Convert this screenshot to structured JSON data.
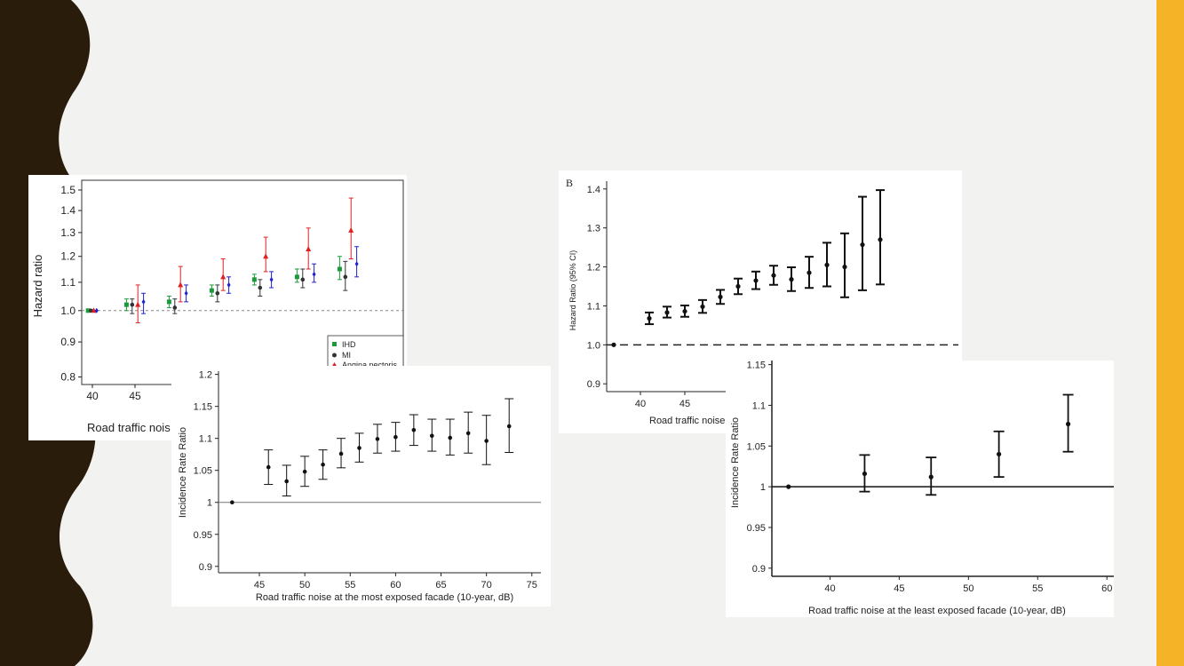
{
  "colors": {
    "background": "#f2f2f0",
    "left_border": "#2a1c0b",
    "right_border": "#f5b427",
    "ihd": "#1a9a3a",
    "mi": "#333333",
    "angina": "#e02020",
    "series4": "#2020d0"
  },
  "chart_data": [
    {
      "id": "A",
      "type": "scatter",
      "ylabel": "Hazard ratio",
      "xlabel": "Road traffic nois",
      "ylim": [
        0.78,
        1.55
      ],
      "ylog": true,
      "yticks": [
        "1.5",
        "1.4",
        "1.3",
        "1.2",
        "1.1",
        "1.0",
        "0.9",
        "0.8"
      ],
      "xticks": [
        "40",
        "45"
      ],
      "reference_line": 1.0,
      "legend": [
        "IHD",
        "MI",
        "Angina pectoris"
      ],
      "legend_position": "bottom-right",
      "series": [
        {
          "name": "IHD",
          "color": "#1a9a3a",
          "marker": "square",
          "points": [
            {
              "x": 40,
              "y": 1.0,
              "lo": 1.0,
              "hi": 1.0
            },
            {
              "x": 45,
              "y": 1.02,
              "lo": 1.0,
              "hi": 1.04
            },
            {
              "x": 50,
              "y": 1.03,
              "lo": 1.01,
              "hi": 1.05
            },
            {
              "x": 55,
              "y": 1.07,
              "lo": 1.05,
              "hi": 1.09
            },
            {
              "x": 60,
              "y": 1.11,
              "lo": 1.09,
              "hi": 1.13
            },
            {
              "x": 65,
              "y": 1.12,
              "lo": 1.1,
              "hi": 1.15
            },
            {
              "x": 70,
              "y": 1.15,
              "lo": 1.11,
              "hi": 1.2
            }
          ]
        },
        {
          "name": "MI",
          "color": "#333333",
          "marker": "circle",
          "points": [
            {
              "x": 40,
              "y": 1.0,
              "lo": 1.0,
              "hi": 1.0
            },
            {
              "x": 45,
              "y": 1.02,
              "lo": 0.99,
              "hi": 1.04
            },
            {
              "x": 50,
              "y": 1.01,
              "lo": 0.99,
              "hi": 1.04
            },
            {
              "x": 55,
              "y": 1.06,
              "lo": 1.03,
              "hi": 1.09
            },
            {
              "x": 60,
              "y": 1.08,
              "lo": 1.05,
              "hi": 1.11
            },
            {
              "x": 65,
              "y": 1.11,
              "lo": 1.08,
              "hi": 1.15
            },
            {
              "x": 70,
              "y": 1.12,
              "lo": 1.07,
              "hi": 1.18
            }
          ]
        },
        {
          "name": "Angina pectoris",
          "color": "#e02020",
          "marker": "triangle",
          "points": [
            {
              "x": 40,
              "y": 1.0,
              "lo": 1.0,
              "hi": 1.0
            },
            {
              "x": 45,
              "y": 1.02,
              "lo": 0.96,
              "hi": 1.09
            },
            {
              "x": 50,
              "y": 1.09,
              "lo": 1.03,
              "hi": 1.16
            },
            {
              "x": 55,
              "y": 1.12,
              "lo": 1.07,
              "hi": 1.19
            },
            {
              "x": 60,
              "y": 1.2,
              "lo": 1.14,
              "hi": 1.28
            },
            {
              "x": 65,
              "y": 1.23,
              "lo": 1.15,
              "hi": 1.32
            },
            {
              "x": 70,
              "y": 1.31,
              "lo": 1.19,
              "hi": 1.46
            }
          ]
        },
        {
          "name": "",
          "color": "#2020d0",
          "marker": "diamond",
          "points": [
            {
              "x": 40,
              "y": 1.0,
              "lo": 1.0,
              "hi": 1.0
            },
            {
              "x": 45,
              "y": 1.03,
              "lo": 0.99,
              "hi": 1.06
            },
            {
              "x": 50,
              "y": 1.06,
              "lo": 1.03,
              "hi": 1.09
            },
            {
              "x": 55,
              "y": 1.09,
              "lo": 1.06,
              "hi": 1.12
            },
            {
              "x": 60,
              "y": 1.11,
              "lo": 1.08,
              "hi": 1.14
            },
            {
              "x": 65,
              "y": 1.13,
              "lo": 1.1,
              "hi": 1.17
            },
            {
              "x": 70,
              "y": 1.17,
              "lo": 1.12,
              "hi": 1.24
            }
          ]
        }
      ]
    },
    {
      "id": "B",
      "type": "scatter",
      "panel_label": "B",
      "ylabel": "Hazard Ratio (95% CI)",
      "xlabel": "Road traffic noise a",
      "ylim": [
        0.88,
        1.42
      ],
      "yticks": [
        "1.4",
        "1.3",
        "1.2",
        "1.1",
        "1.0",
        "0.9"
      ],
      "xticks": [
        "40",
        "45"
      ],
      "reference_line": 1.0,
      "points": [
        {
          "x": 37,
          "y": 1.0,
          "lo": 1.0,
          "hi": 1.0
        },
        {
          "x": 41,
          "y": 1.068,
          "lo": 1.053,
          "hi": 1.083
        },
        {
          "x": 43,
          "y": 1.083,
          "lo": 1.07,
          "hi": 1.098
        },
        {
          "x": 45,
          "y": 1.086,
          "lo": 1.072,
          "hi": 1.101
        },
        {
          "x": 47,
          "y": 1.098,
          "lo": 1.082,
          "hi": 1.115
        },
        {
          "x": 49,
          "y": 1.123,
          "lo": 1.105,
          "hi": 1.141
        },
        {
          "x": 51,
          "y": 1.15,
          "lo": 1.13,
          "hi": 1.17
        },
        {
          "x": 53,
          "y": 1.165,
          "lo": 1.143,
          "hi": 1.188
        },
        {
          "x": 55,
          "y": 1.178,
          "lo": 1.154,
          "hi": 1.203
        },
        {
          "x": 57,
          "y": 1.168,
          "lo": 1.138,
          "hi": 1.199
        },
        {
          "x": 59,
          "y": 1.185,
          "lo": 1.146,
          "hi": 1.226
        },
        {
          "x": 61,
          "y": 1.205,
          "lo": 1.15,
          "hi": 1.262
        },
        {
          "x": 63,
          "y": 1.2,
          "lo": 1.122,
          "hi": 1.286
        },
        {
          "x": 65,
          "y": 1.257,
          "lo": 1.14,
          "hi": 1.38
        },
        {
          "x": 67,
          "y": 1.27,
          "lo": 1.155,
          "hi": 1.397
        }
      ]
    },
    {
      "id": "C",
      "type": "scatter",
      "ylabel": "Incidence Rate Ratio",
      "xlabel": "Road traffic noise at the most exposed facade (10-year, dB)",
      "ylim": [
        0.89,
        1.205
      ],
      "xlim": [
        40.5,
        76
      ],
      "yticks": [
        "1.2",
        "1.15",
        "1.1",
        "1.05",
        "1",
        "0.95",
        "0.9"
      ],
      "xticks": [
        "45",
        "50",
        "55",
        "60",
        "65",
        "70",
        "75"
      ],
      "reference_line": 1.0,
      "points": [
        {
          "x": 42,
          "y": 1.0,
          "lo": 1.0,
          "hi": 1.0
        },
        {
          "x": 46,
          "y": 1.055,
          "lo": 1.028,
          "hi": 1.082
        },
        {
          "x": 48,
          "y": 1.033,
          "lo": 1.01,
          "hi": 1.058
        },
        {
          "x": 50,
          "y": 1.048,
          "lo": 1.025,
          "hi": 1.072
        },
        {
          "x": 52,
          "y": 1.059,
          "lo": 1.036,
          "hi": 1.082
        },
        {
          "x": 54,
          "y": 1.076,
          "lo": 1.054,
          "hi": 1.1
        },
        {
          "x": 56,
          "y": 1.085,
          "lo": 1.063,
          "hi": 1.108
        },
        {
          "x": 58,
          "y": 1.099,
          "lo": 1.077,
          "hi": 1.122
        },
        {
          "x": 60,
          "y": 1.102,
          "lo": 1.08,
          "hi": 1.125
        },
        {
          "x": 62,
          "y": 1.113,
          "lo": 1.089,
          "hi": 1.137
        },
        {
          "x": 64,
          "y": 1.104,
          "lo": 1.08,
          "hi": 1.13
        },
        {
          "x": 66,
          "y": 1.101,
          "lo": 1.074,
          "hi": 1.13
        },
        {
          "x": 68,
          "y": 1.108,
          "lo": 1.077,
          "hi": 1.141
        },
        {
          "x": 70,
          "y": 1.096,
          "lo": 1.059,
          "hi": 1.136
        },
        {
          "x": 72.5,
          "y": 1.119,
          "lo": 1.078,
          "hi": 1.162
        }
      ]
    },
    {
      "id": "D",
      "type": "scatter",
      "ylabel": "Incidence Rate Ratio",
      "xlabel": "Road traffic noise at the least exposed facade (10-year, dB)",
      "ylim": [
        0.89,
        1.155
      ],
      "xlim": [
        35.8,
        60.5
      ],
      "yticks": [
        "1.15",
        "1.1",
        "1.05",
        "1",
        "0.95",
        "0.9"
      ],
      "xticks": [
        "40",
        "45",
        "50",
        "55",
        "60"
      ],
      "reference_line": 1.0,
      "points": [
        {
          "x": 37,
          "y": 1.0,
          "lo": 1.0,
          "hi": 1.0
        },
        {
          "x": 42.5,
          "y": 1.016,
          "lo": 0.994,
          "hi": 1.039
        },
        {
          "x": 47.3,
          "y": 1.012,
          "lo": 0.99,
          "hi": 1.036
        },
        {
          "x": 52.2,
          "y": 1.04,
          "lo": 1.012,
          "hi": 1.068
        },
        {
          "x": 57.2,
          "y": 1.077,
          "lo": 1.043,
          "hi": 1.113
        }
      ]
    }
  ]
}
